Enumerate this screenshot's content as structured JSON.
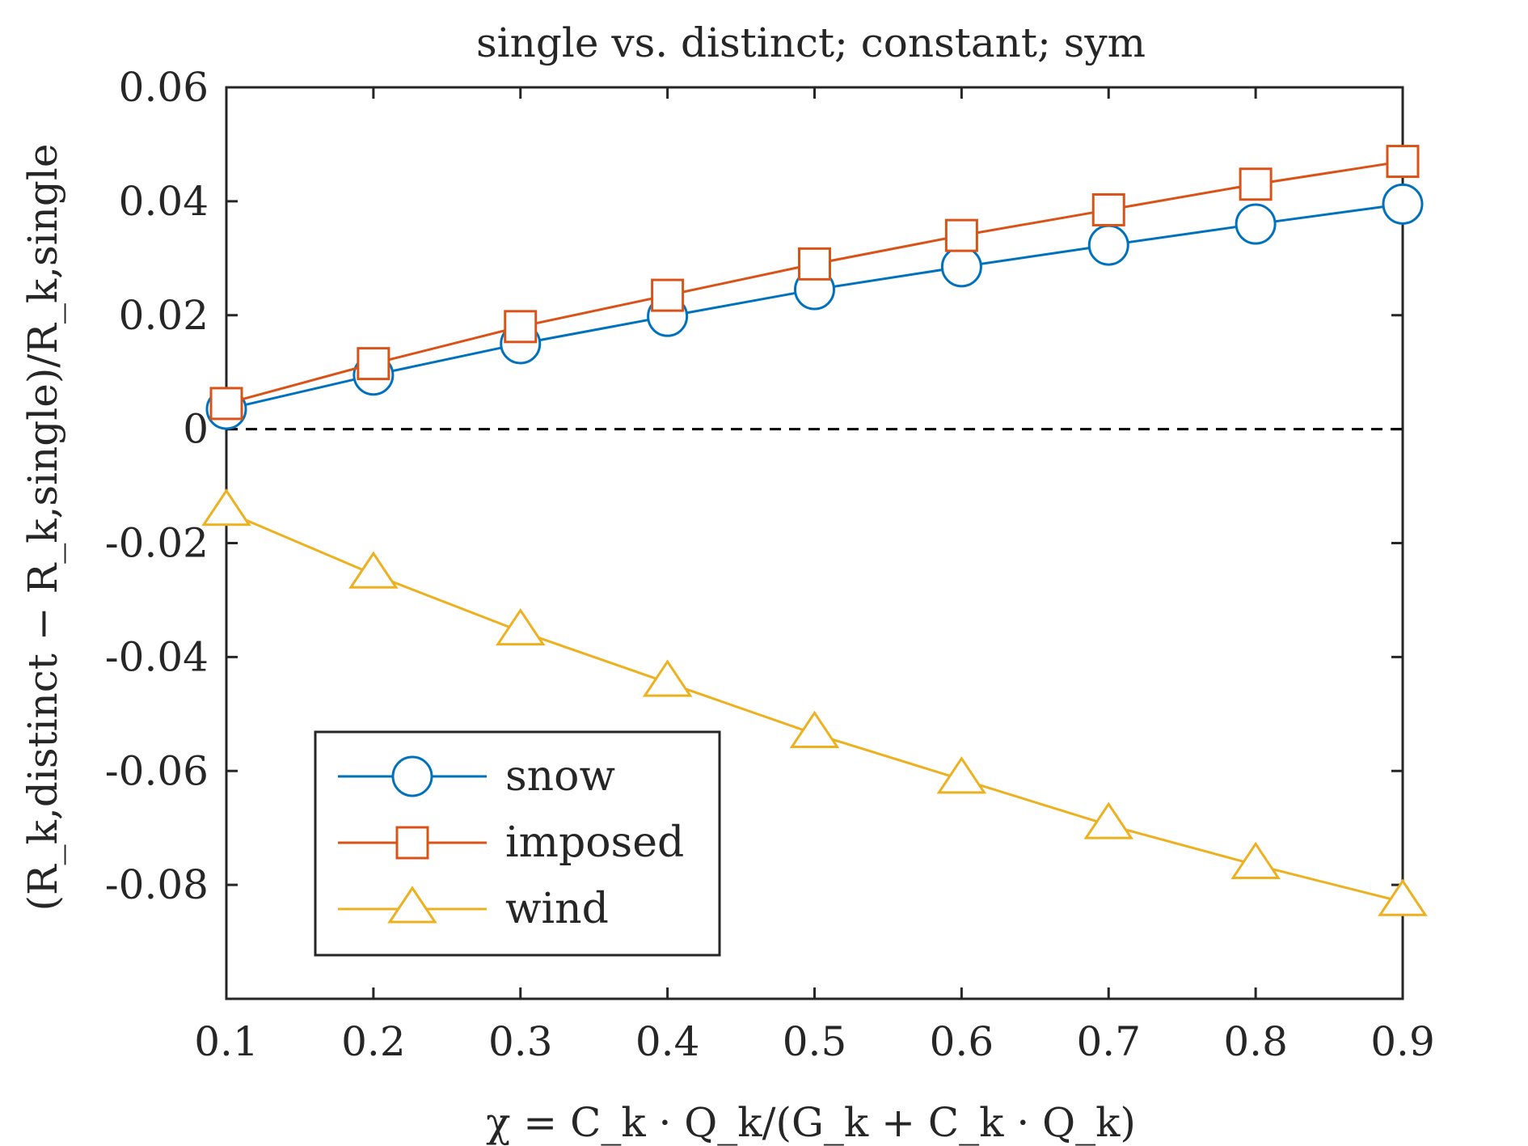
{
  "chart_data": {
    "type": "line",
    "title": "single vs. distinct; constant; sym",
    "xlabel": "χ = C_k · Q_k/(G_k + C_k · Q_k)",
    "ylabel": "(R_k,distinct − R_k,single)/R_k,single",
    "xlim": [
      0.1,
      0.9
    ],
    "ylim": [
      -0.1,
      0.06
    ],
    "x": [
      0.1,
      0.2,
      0.3,
      0.4,
      0.5,
      0.6,
      0.7,
      0.8,
      0.9
    ],
    "x_tick_labels": [
      "0.1",
      "0.2",
      "0.3",
      "0.4",
      "0.5",
      "0.6",
      "0.7",
      "0.8",
      "0.9"
    ],
    "y_ticks": [
      0.06,
      0.04,
      0.02,
      0,
      -0.02,
      -0.04,
      -0.06,
      -0.08
    ],
    "y_tick_labels": [
      "0.06",
      "0.04",
      "0.02",
      "0",
      "-0.02",
      "-0.04",
      "-0.06",
      "-0.08"
    ],
    "grid": false,
    "reference_line": {
      "y": 0,
      "style": "dashed",
      "color": "#000000"
    },
    "legend_position": "bottom-left",
    "series": [
      {
        "name": "snow",
        "color": "#0072BD",
        "marker": "circle",
        "values": [
          0.0035,
          0.0095,
          0.015,
          0.0198,
          0.0245,
          0.0285,
          0.0323,
          0.036,
          0.0395
        ]
      },
      {
        "name": "imposed",
        "color": "#D95319",
        "marker": "square",
        "values": [
          0.0045,
          0.0115,
          0.018,
          0.0235,
          0.029,
          0.034,
          0.0385,
          0.043,
          0.047
        ]
      },
      {
        "name": "wind",
        "color": "#EDB120",
        "marker": "triangle",
        "values": [
          -0.0145,
          -0.0255,
          -0.0355,
          -0.0445,
          -0.0535,
          -0.0615,
          -0.0695,
          -0.0765,
          -0.083
        ]
      }
    ]
  }
}
